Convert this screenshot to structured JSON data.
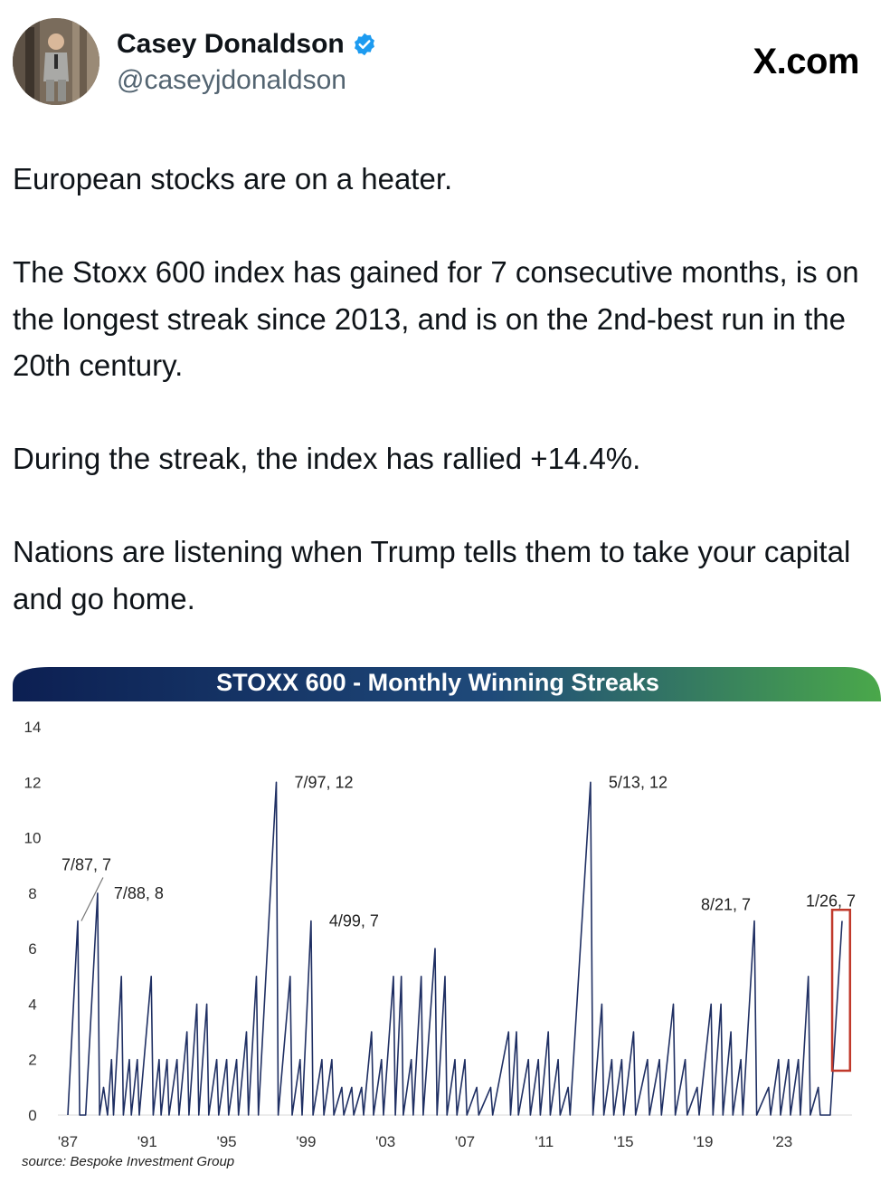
{
  "header": {
    "display_name": "Casey Donaldson",
    "handle": "@caseyjdonaldson",
    "site": "X.com",
    "verified": true,
    "avatar_icon": "profile-photo"
  },
  "tweet": {
    "text": "European stocks are on a heater.\n\nThe Stoxx 600 index has gained for 7 consecutive months, is on the longest streak since 2013, and is on the 2nd-best run in the 20th century.\n\nDuring the streak, the index has rallied +14.4%.\n\nNations are listening when Trump tells them to take your capital and go home."
  },
  "colors": {
    "accent_blue": "#1d9bf0",
    "handle_gray": "#536471",
    "line_navy": "#1f2f63",
    "banner_left": "#0c1f52",
    "banner_right": "#4aa84a",
    "highlight_red": "#c0392b"
  },
  "chart_data": {
    "type": "line",
    "title": "STOXX 600 - Monthly Winning Streaks",
    "source": "source: Bespoke Investment Group",
    "ylim": [
      0,
      14
    ],
    "xlim": [
      1986.5,
      2026.5
    ],
    "y_ticks": [
      "0",
      "2",
      "4",
      "6",
      "8",
      "10",
      "12",
      "14"
    ],
    "x_ticks": [
      {
        "label": "'87",
        "value": 1987
      },
      {
        "label": "'91",
        "value": 1991
      },
      {
        "label": "'95",
        "value": 1995
      },
      {
        "label": "'99",
        "value": 1999
      },
      {
        "label": "'03",
        "value": 2003
      },
      {
        "label": "'07",
        "value": 2007
      },
      {
        "label": "'11",
        "value": 2011
      },
      {
        "label": "'15",
        "value": 2015
      },
      {
        "label": "'19",
        "value": 2019
      },
      {
        "label": "'23",
        "value": 2023
      }
    ],
    "annotations": [
      {
        "text": "7/87, 7",
        "x": 1987.5,
        "y": 7
      },
      {
        "text": "7/88, 8",
        "x": 1988.5,
        "y": 8
      },
      {
        "text": "7/97, 12",
        "x": 1997.5,
        "y": 12
      },
      {
        "text": "4/99, 7",
        "x": 1999.25,
        "y": 7
      },
      {
        "text": "5/13, 12",
        "x": 2013.33,
        "y": 12
      },
      {
        "text": "8/21, 7",
        "x": 2021.58,
        "y": 7
      },
      {
        "text": "1/26, 7",
        "x": 2026.0,
        "y": 7
      }
    ],
    "series": [
      {
        "values": [
          [
            1987.0,
            0
          ],
          [
            1987.5,
            7
          ],
          [
            1987.6,
            0
          ],
          [
            1987.9,
            0
          ],
          [
            1988.5,
            8
          ],
          [
            1988.6,
            0
          ],
          [
            1988.8,
            1
          ],
          [
            1989.0,
            0
          ],
          [
            1989.2,
            2
          ],
          [
            1989.3,
            0
          ],
          [
            1989.7,
            5
          ],
          [
            1989.8,
            0
          ],
          [
            1990.1,
            2
          ],
          [
            1990.2,
            0
          ],
          [
            1990.5,
            2
          ],
          [
            1990.6,
            0
          ],
          [
            1991.2,
            5
          ],
          [
            1991.3,
            0
          ],
          [
            1991.6,
            2
          ],
          [
            1991.7,
            0
          ],
          [
            1992.0,
            2
          ],
          [
            1992.1,
            0
          ],
          [
            1992.5,
            2
          ],
          [
            1992.6,
            0
          ],
          [
            1993.0,
            3
          ],
          [
            1993.1,
            0
          ],
          [
            1993.5,
            4
          ],
          [
            1993.6,
            0
          ],
          [
            1994.0,
            4
          ],
          [
            1994.1,
            0
          ],
          [
            1994.5,
            2
          ],
          [
            1994.6,
            0
          ],
          [
            1995.0,
            2
          ],
          [
            1995.1,
            0
          ],
          [
            1995.5,
            2
          ],
          [
            1995.6,
            0
          ],
          [
            1996.0,
            3
          ],
          [
            1996.1,
            0
          ],
          [
            1996.5,
            5
          ],
          [
            1996.6,
            0
          ],
          [
            1997.5,
            12
          ],
          [
            1997.6,
            0
          ],
          [
            1998.2,
            5
          ],
          [
            1998.3,
            0
          ],
          [
            1998.7,
            2
          ],
          [
            1998.8,
            0
          ],
          [
            1999.25,
            7
          ],
          [
            1999.35,
            0
          ],
          [
            1999.8,
            2
          ],
          [
            1999.9,
            0
          ],
          [
            2000.3,
            2
          ],
          [
            2000.4,
            0
          ],
          [
            2000.8,
            1
          ],
          [
            2000.9,
            0
          ],
          [
            2001.3,
            1
          ],
          [
            2001.4,
            0
          ],
          [
            2001.8,
            1
          ],
          [
            2001.9,
            0
          ],
          [
            2002.3,
            3
          ],
          [
            2002.4,
            0
          ],
          [
            2002.8,
            2
          ],
          [
            2002.9,
            0
          ],
          [
            2003.4,
            5
          ],
          [
            2003.5,
            0
          ],
          [
            2003.8,
            5
          ],
          [
            2003.9,
            0
          ],
          [
            2004.3,
            2
          ],
          [
            2004.4,
            0
          ],
          [
            2004.8,
            5
          ],
          [
            2004.9,
            0
          ],
          [
            2005.5,
            6
          ],
          [
            2005.6,
            0
          ],
          [
            2006.0,
            5
          ],
          [
            2006.1,
            0
          ],
          [
            2006.5,
            2
          ],
          [
            2006.6,
            0
          ],
          [
            2007.0,
            2
          ],
          [
            2007.1,
            0
          ],
          [
            2007.6,
            1
          ],
          [
            2007.7,
            0
          ],
          [
            2008.3,
            1
          ],
          [
            2008.4,
            0
          ],
          [
            2009.2,
            3
          ],
          [
            2009.3,
            0
          ],
          [
            2009.6,
            3
          ],
          [
            2009.7,
            0
          ],
          [
            2010.2,
            2
          ],
          [
            2010.3,
            0
          ],
          [
            2010.7,
            2
          ],
          [
            2010.8,
            0
          ],
          [
            2011.2,
            3
          ],
          [
            2011.3,
            0
          ],
          [
            2011.7,
            2
          ],
          [
            2011.8,
            0
          ],
          [
            2012.2,
            1
          ],
          [
            2012.3,
            0
          ],
          [
            2013.33,
            12
          ],
          [
            2013.45,
            0
          ],
          [
            2013.9,
            4
          ],
          [
            2014.0,
            0
          ],
          [
            2014.4,
            2
          ],
          [
            2014.5,
            0
          ],
          [
            2014.9,
            2
          ],
          [
            2015.0,
            0
          ],
          [
            2015.5,
            3
          ],
          [
            2015.6,
            0
          ],
          [
            2016.2,
            2
          ],
          [
            2016.3,
            0
          ],
          [
            2016.8,
            2
          ],
          [
            2016.9,
            0
          ],
          [
            2017.5,
            4
          ],
          [
            2017.6,
            0
          ],
          [
            2018.1,
            2
          ],
          [
            2018.2,
            0
          ],
          [
            2018.7,
            1
          ],
          [
            2018.8,
            0
          ],
          [
            2019.4,
            4
          ],
          [
            2019.5,
            0
          ],
          [
            2019.9,
            4
          ],
          [
            2020.0,
            0
          ],
          [
            2020.4,
            3
          ],
          [
            2020.5,
            0
          ],
          [
            2020.9,
            2
          ],
          [
            2021.0,
            0
          ],
          [
            2021.58,
            7
          ],
          [
            2021.7,
            0
          ],
          [
            2022.3,
            1
          ],
          [
            2022.4,
            0
          ],
          [
            2022.8,
            2
          ],
          [
            2022.9,
            0
          ],
          [
            2023.3,
            2
          ],
          [
            2023.4,
            0
          ],
          [
            2023.8,
            2
          ],
          [
            2023.9,
            0
          ],
          [
            2024.3,
            5
          ],
          [
            2024.4,
            0
          ],
          [
            2024.8,
            1
          ],
          [
            2024.9,
            0
          ],
          [
            2025.4,
            0
          ],
          [
            2026.0,
            7
          ]
        ]
      }
    ],
    "highlight": {
      "x0": 2025.5,
      "x1": 2026.4,
      "y0": 1.6,
      "y1": 7.4
    }
  }
}
